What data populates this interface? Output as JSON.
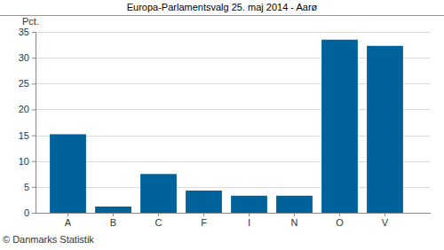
{
  "chart_data": {
    "type": "bar",
    "title": "Europa-Parlamentsvalg 25. maj 2014 - Aarø",
    "y_label": "Pct.",
    "source": "© Danmarks Statistik",
    "categories": [
      "A",
      "B",
      "C",
      "F",
      "I",
      "N",
      "O",
      "V"
    ],
    "values": [
      15.2,
      1.2,
      7.5,
      4.3,
      3.3,
      3.3,
      33.5,
      32.3
    ],
    "color": "#00629b",
    "ylim": [
      0,
      35
    ],
    "yticks": [
      0,
      5,
      10,
      15,
      20,
      25,
      30,
      35
    ],
    "grid": true
  }
}
